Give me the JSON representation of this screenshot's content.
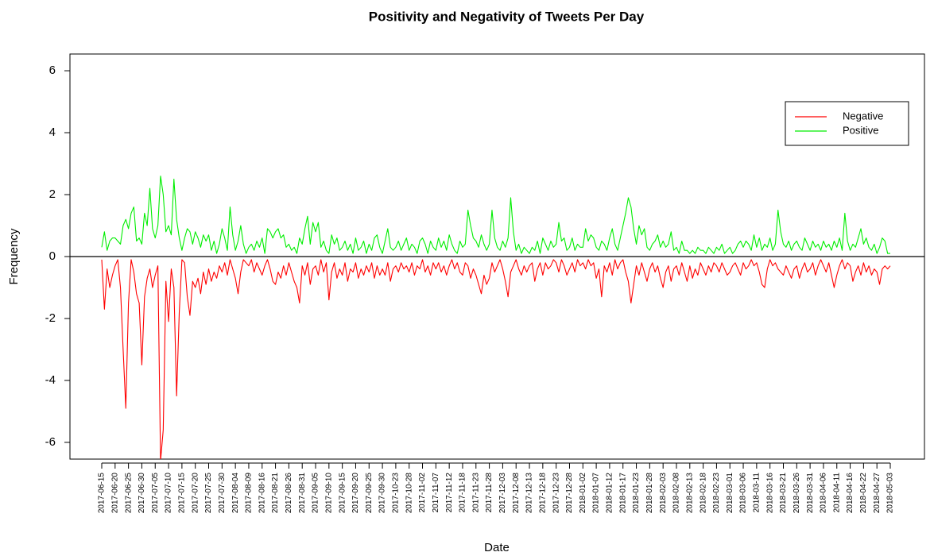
{
  "chart_data": {
    "type": "line",
    "title": "Positivity and Negativity of Tweets Per Day",
    "x_label": "Date",
    "y_label": "Frequency",
    "ylim": [
      -6.54,
      6.54
    ],
    "yticks": [
      -6,
      -4,
      -2,
      0,
      2,
      4,
      6
    ],
    "hline": 0,
    "legend": "topright",
    "categories": [
      "2017-06-15",
      null,
      null,
      null,
      null,
      "2017-06-20",
      null,
      null,
      null,
      null,
      "2017-06-25",
      null,
      null,
      null,
      null,
      "2017-06-30",
      null,
      null,
      null,
      null,
      "2017-07-05",
      null,
      null,
      null,
      null,
      "2017-07-10",
      null,
      null,
      null,
      null,
      "2017-07-15",
      null,
      null,
      null,
      null,
      "2017-07-20",
      null,
      null,
      null,
      null,
      "2017-07-25",
      null,
      null,
      null,
      null,
      "2017-07-30",
      null,
      null,
      null,
      null,
      "2017-08-04",
      null,
      null,
      null,
      null,
      "2017-08-09",
      null,
      null,
      null,
      null,
      "2017-08-16",
      null,
      null,
      null,
      null,
      "2017-08-21",
      null,
      null,
      null,
      null,
      "2017-08-26",
      null,
      null,
      null,
      null,
      "2017-08-31",
      null,
      null,
      null,
      null,
      "2017-09-05",
      null,
      null,
      null,
      null,
      "2017-09-10",
      null,
      null,
      null,
      null,
      "2017-09-15",
      null,
      null,
      null,
      null,
      "2017-09-20",
      null,
      null,
      null,
      null,
      "2017-09-25",
      null,
      null,
      null,
      null,
      "2017-09-30",
      null,
      null,
      null,
      null,
      "2017-10-23",
      null,
      null,
      null,
      null,
      "2017-10-28",
      null,
      null,
      null,
      null,
      "2017-11-02",
      null,
      null,
      null,
      null,
      "2017-11-07",
      null,
      null,
      null,
      null,
      "2017-11-12",
      null,
      null,
      null,
      null,
      "2017-11-18",
      null,
      null,
      null,
      null,
      "2017-11-23",
      null,
      null,
      null,
      null,
      "2017-11-28",
      null,
      null,
      null,
      null,
      "2017-12-03",
      null,
      null,
      null,
      null,
      "2017-12-08",
      null,
      null,
      null,
      null,
      "2017-12-13",
      null,
      null,
      null,
      null,
      "2017-12-18",
      null,
      null,
      null,
      null,
      "2017-12-23",
      null,
      null,
      null,
      null,
      "2017-12-28",
      null,
      null,
      null,
      null,
      "2018-01-02",
      null,
      null,
      null,
      null,
      "2018-01-07",
      null,
      null,
      null,
      null,
      "2018-01-12",
      null,
      null,
      null,
      null,
      "2018-01-17",
      null,
      null,
      null,
      null,
      "2018-01-23",
      null,
      null,
      null,
      null,
      "2018-01-28",
      null,
      null,
      null,
      null,
      "2018-02-03",
      null,
      null,
      null,
      null,
      "2018-02-08",
      null,
      null,
      null,
      null,
      "2018-02-13",
      null,
      null,
      null,
      null,
      "2018-02-18",
      null,
      null,
      null,
      null,
      "2018-02-23",
      null,
      null,
      null,
      null,
      "2018-03-01",
      null,
      null,
      null,
      null,
      "2018-03-06",
      null,
      null,
      null,
      null,
      "2018-03-11",
      null,
      null,
      null,
      null,
      "2018-03-16",
      null,
      null,
      null,
      null,
      "2018-03-21",
      null,
      null,
      null,
      null,
      "2018-03-26",
      null,
      null,
      null,
      null,
      "2018-03-31",
      null,
      null,
      null,
      null,
      "2018-04-06",
      null,
      null,
      null,
      null,
      "2018-04-11",
      null,
      null,
      null,
      null,
      "2018-04-16",
      null,
      null,
      null,
      null,
      "2018-04-22",
      null,
      null,
      null,
      null,
      "2018-04-27",
      null,
      null,
      null,
      null,
      "2018-05-03"
    ],
    "series": [
      {
        "name": "Negative",
        "color": "#ff0000",
        "values": [
          -0.1,
          -1.7,
          -0.4,
          -1.0,
          -0.6,
          -0.3,
          -0.1,
          -1.0,
          -3.0,
          -4.9,
          -1.5,
          -0.1,
          -0.5,
          -1.2,
          -1.5,
          -3.5,
          -1.3,
          -0.7,
          -0.4,
          -1.0,
          -0.6,
          -0.3,
          -6.6,
          -5.6,
          -0.8,
          -2.1,
          -0.4,
          -1.0,
          -4.5,
          -1.8,
          -0.1,
          -0.2,
          -1.3,
          -1.9,
          -0.8,
          -1.0,
          -0.7,
          -1.2,
          -0.5,
          -0.9,
          -0.4,
          -0.8,
          -0.5,
          -0.7,
          -0.3,
          -0.5,
          -0.2,
          -0.6,
          -0.1,
          -0.4,
          -0.7,
          -1.2,
          -0.5,
          -0.1,
          -0.2,
          -0.3,
          -0.1,
          -0.5,
          -0.2,
          -0.4,
          -0.6,
          -0.3,
          -0.1,
          -0.4,
          -0.8,
          -0.9,
          -0.5,
          -0.7,
          -0.3,
          -0.6,
          -0.2,
          -0.5,
          -0.8,
          -1.0,
          -1.5,
          -0.3,
          -0.6,
          -0.2,
          -0.9,
          -0.4,
          -0.3,
          -0.6,
          -0.1,
          -0.5,
          -0.2,
          -1.4,
          -0.5,
          -0.2,
          -0.7,
          -0.4,
          -0.6,
          -0.2,
          -0.8,
          -0.4,
          -0.5,
          -0.2,
          -0.7,
          -0.4,
          -0.6,
          -0.3,
          -0.5,
          -0.2,
          -0.7,
          -0.3,
          -0.6,
          -0.4,
          -0.6,
          -0.2,
          -0.8,
          -0.4,
          -0.3,
          -0.5,
          -0.2,
          -0.4,
          -0.3,
          -0.5,
          -0.2,
          -0.6,
          -0.3,
          -0.4,
          -0.1,
          -0.5,
          -0.3,
          -0.6,
          -0.2,
          -0.4,
          -0.2,
          -0.5,
          -0.3,
          -0.6,
          -0.3,
          -0.1,
          -0.4,
          -0.2,
          -0.5,
          -0.6,
          -0.2,
          -0.3,
          -0.7,
          -0.4,
          -0.6,
          -0.9,
          -1.2,
          -0.6,
          -0.9,
          -0.7,
          -0.2,
          -0.5,
          -0.3,
          -0.1,
          -0.4,
          -0.8,
          -1.3,
          -0.5,
          -0.3,
          -0.1,
          -0.4,
          -0.6,
          -0.3,
          -0.5,
          -0.3,
          -0.2,
          -0.8,
          -0.4,
          -0.2,
          -0.6,
          -0.2,
          -0.4,
          -0.3,
          -0.1,
          -0.2,
          -0.5,
          -0.1,
          -0.3,
          -0.6,
          -0.4,
          -0.2,
          -0.5,
          -0.1,
          -0.3,
          -0.2,
          -0.4,
          -0.1,
          -0.3,
          -0.2,
          -0.7,
          -0.4,
          -1.3,
          -0.3,
          -0.5,
          -0.2,
          -0.6,
          -0.1,
          -0.4,
          -0.2,
          -0.1,
          -0.5,
          -0.8,
          -1.5,
          -0.9,
          -0.3,
          -0.6,
          -0.2,
          -0.5,
          -0.8,
          -0.4,
          -0.2,
          -0.5,
          -0.3,
          -0.7,
          -1.0,
          -0.5,
          -0.3,
          -0.8,
          -0.4,
          -0.3,
          -0.6,
          -0.2,
          -0.5,
          -0.8,
          -0.3,
          -0.7,
          -0.4,
          -0.6,
          -0.2,
          -0.4,
          -0.6,
          -0.3,
          -0.5,
          -0.2,
          -0.3,
          -0.5,
          -0.2,
          -0.4,
          -0.6,
          -0.5,
          -0.3,
          -0.2,
          -0.4,
          -0.6,
          -0.2,
          -0.4,
          -0.3,
          -0.1,
          -0.3,
          -0.2,
          -0.5,
          -0.9,
          -1.0,
          -0.4,
          -0.1,
          -0.3,
          -0.2,
          -0.4,
          -0.5,
          -0.6,
          -0.3,
          -0.5,
          -0.7,
          -0.4,
          -0.3,
          -0.7,
          -0.4,
          -0.2,
          -0.5,
          -0.4,
          -0.2,
          -0.6,
          -0.3,
          -0.1,
          -0.3,
          -0.5,
          -0.2,
          -0.6,
          -1.0,
          -0.6,
          -0.3,
          -0.1,
          -0.4,
          -0.2,
          -0.3,
          -0.8,
          -0.5,
          -0.3,
          -0.6,
          -0.2,
          -0.5,
          -0.3,
          -0.6,
          -0.4,
          -0.5,
          -0.9,
          -0.4,
          -0.3,
          -0.4,
          -0.3
        ]
      },
      {
        "name": "Positive",
        "color": "#00ee00",
        "values": [
          0.3,
          0.8,
          0.2,
          0.5,
          0.6,
          0.6,
          0.5,
          0.4,
          1.0,
          1.2,
          0.9,
          1.4,
          1.6,
          0.5,
          0.6,
          0.4,
          1.4,
          1.0,
          2.2,
          0.9,
          0.6,
          1.0,
          2.6,
          2.0,
          0.8,
          1.0,
          0.7,
          2.5,
          1.2,
          0.6,
          0.2,
          0.6,
          0.9,
          0.8,
          0.4,
          0.8,
          0.6,
          0.3,
          0.7,
          0.5,
          0.7,
          0.2,
          0.5,
          0.1,
          0.4,
          0.9,
          0.6,
          0.2,
          1.6,
          0.7,
          0.2,
          0.5,
          1.0,
          0.4,
          0.1,
          0.3,
          0.4,
          0.2,
          0.5,
          0.3,
          0.6,
          0.1,
          0.9,
          0.8,
          0.6,
          0.8,
          0.9,
          0.6,
          0.7,
          0.3,
          0.4,
          0.2,
          0.3,
          0.1,
          0.6,
          0.4,
          0.9,
          1.3,
          0.4,
          1.1,
          0.8,
          1.1,
          0.3,
          0.5,
          0.2,
          0.1,
          0.7,
          0.4,
          0.6,
          0.2,
          0.3,
          0.5,
          0.2,
          0.4,
          0.1,
          0.6,
          0.2,
          0.3,
          0.5,
          0.1,
          0.4,
          0.2,
          0.6,
          0.7,
          0.3,
          0.1,
          0.5,
          0.9,
          0.3,
          0.2,
          0.3,
          0.5,
          0.2,
          0.4,
          0.6,
          0.2,
          0.4,
          0.3,
          0.1,
          0.5,
          0.6,
          0.4,
          0.1,
          0.5,
          0.3,
          0.2,
          0.6,
          0.3,
          0.5,
          0.2,
          0.7,
          0.4,
          0.2,
          0.1,
          0.5,
          0.3,
          0.4,
          1.5,
          1.0,
          0.6,
          0.5,
          0.3,
          0.7,
          0.4,
          0.2,
          0.4,
          1.5,
          0.6,
          0.3,
          0.2,
          0.5,
          0.3,
          0.6,
          1.9,
          0.8,
          0.2,
          0.4,
          0.1,
          0.3,
          0.2,
          0.1,
          0.3,
          0.2,
          0.5,
          0.1,
          0.6,
          0.4,
          0.2,
          0.5,
          0.3,
          0.4,
          1.1,
          0.5,
          0.6,
          0.2,
          0.3,
          0.6,
          0.2,
          0.4,
          0.3,
          0.3,
          0.9,
          0.5,
          0.7,
          0.6,
          0.3,
          0.2,
          0.5,
          0.4,
          0.2,
          0.6,
          0.9,
          0.4,
          0.2,
          0.6,
          1.0,
          1.4,
          1.9,
          1.6,
          0.9,
          0.4,
          1.0,
          0.7,
          0.9,
          0.3,
          0.2,
          0.4,
          0.5,
          0.7,
          0.3,
          0.5,
          0.3,
          0.4,
          0.8,
          0.2,
          0.3,
          0.1,
          0.5,
          0.2,
          0.2,
          0.1,
          0.2,
          0.1,
          0.3,
          0.2,
          0.2,
          0.1,
          0.3,
          0.2,
          0.1,
          0.3,
          0.2,
          0.4,
          0.1,
          0.2,
          0.3,
          0.1,
          0.2,
          0.4,
          0.5,
          0.3,
          0.5,
          0.4,
          0.2,
          0.7,
          0.3,
          0.6,
          0.2,
          0.4,
          0.3,
          0.6,
          0.2,
          0.4,
          1.5,
          0.8,
          0.4,
          0.3,
          0.5,
          0.2,
          0.4,
          0.5,
          0.3,
          0.2,
          0.6,
          0.4,
          0.2,
          0.5,
          0.3,
          0.4,
          0.2,
          0.5,
          0.3,
          0.4,
          0.2,
          0.5,
          0.3,
          0.6,
          0.2,
          1.4,
          0.5,
          0.2,
          0.4,
          0.3,
          0.6,
          0.9,
          0.4,
          0.6,
          0.3,
          0.2,
          0.4,
          0.1,
          0.3,
          0.6,
          0.5,
          0.1,
          0.1
        ]
      }
    ]
  }
}
